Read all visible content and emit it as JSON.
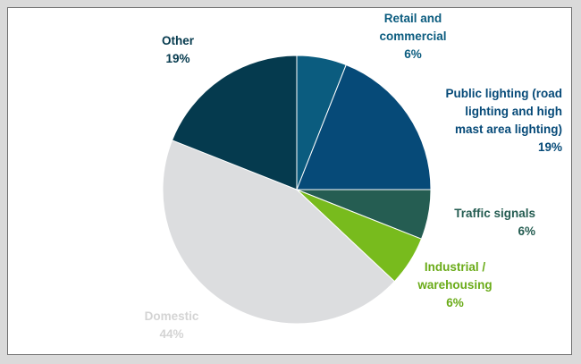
{
  "chart_data": {
    "type": "pie",
    "slices": [
      {
        "label": "Retail and commercial",
        "label_lines": [
          "Retail and",
          "commercial"
        ],
        "value": 6,
        "value_label": "6%",
        "color": "#0b5c7f",
        "label_color": "#0b5c7f"
      },
      {
        "label": "Public lighting (road lighting and high mast area lighting)",
        "label_lines": [
          "Public lighting (road",
          "lighting and high",
          "mast area lighting)"
        ],
        "value": 19,
        "value_label": "19%",
        "color": "#064a78",
        "label_color": "#064a78"
      },
      {
        "label": "Traffic signals",
        "label_lines": [
          "Traffic signals"
        ],
        "value": 6,
        "value_label": "6%",
        "color": "#255d52",
        "label_color": "#255d52"
      },
      {
        "label": "Industrial / warehousing",
        "label_lines": [
          "Industrial /",
          "warehousing"
        ],
        "value": 6,
        "value_label": "6%",
        "color": "#78bb1d",
        "label_color": "#6aab18"
      },
      {
        "label": "Domestic",
        "label_lines": [
          "Domestic"
        ],
        "value": 44,
        "value_label": "44%",
        "color": "#dcdddf",
        "label_color": "#d4d4d4"
      },
      {
        "label": "Other",
        "label_lines": [
          "Other"
        ],
        "value": 19,
        "value_label": "19%",
        "color": "#053a4e",
        "label_color": "#053a4e"
      }
    ],
    "start_angle_deg": 0,
    "direction": "clockwise",
    "legend": "none",
    "title": ""
  }
}
